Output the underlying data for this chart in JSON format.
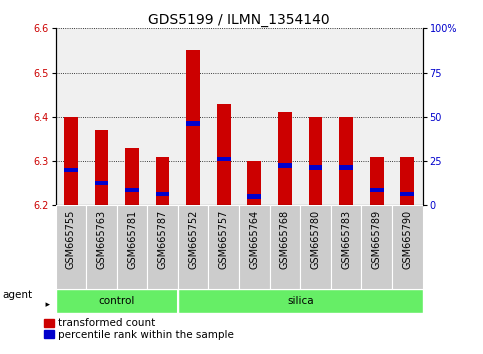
{
  "title": "GDS5199 / ILMN_1354140",
  "samples": [
    "GSM665755",
    "GSM665763",
    "GSM665781",
    "GSM665787",
    "GSM665752",
    "GSM665757",
    "GSM665764",
    "GSM665768",
    "GSM665780",
    "GSM665783",
    "GSM665789",
    "GSM665790"
  ],
  "transformed_count": [
    6.4,
    6.37,
    6.33,
    6.31,
    6.55,
    6.43,
    6.3,
    6.41,
    6.4,
    6.4,
    6.31,
    6.31
  ],
  "percentile_rank": [
    6.28,
    6.25,
    6.235,
    6.225,
    6.385,
    6.305,
    6.22,
    6.29,
    6.285,
    6.285,
    6.235,
    6.225
  ],
  "ylim_left": [
    6.2,
    6.6
  ],
  "ylim_right": [
    0,
    100
  ],
  "yticks_left": [
    6.2,
    6.3,
    6.4,
    6.5,
    6.6
  ],
  "yticks_right": [
    0,
    25,
    50,
    75,
    100
  ],
  "bar_color": "#cc0000",
  "blue_color": "#0000cc",
  "bar_bottom": 6.2,
  "control_count": 4,
  "silica_count": 8,
  "legend_items": [
    "transformed count",
    "percentile rank within the sample"
  ],
  "legend_colors": [
    "#cc0000",
    "#0000cc"
  ],
  "agent_label": "agent",
  "title_fontsize": 10,
  "tick_fontsize": 7,
  "label_fontsize": 7.5,
  "bar_width": 0.45,
  "blue_bar_height": 0.01,
  "grid_color": "#000000",
  "background_plot": "#f0f0f0",
  "xtick_bg_color": "#cccccc",
  "green_color": "#66ee66"
}
